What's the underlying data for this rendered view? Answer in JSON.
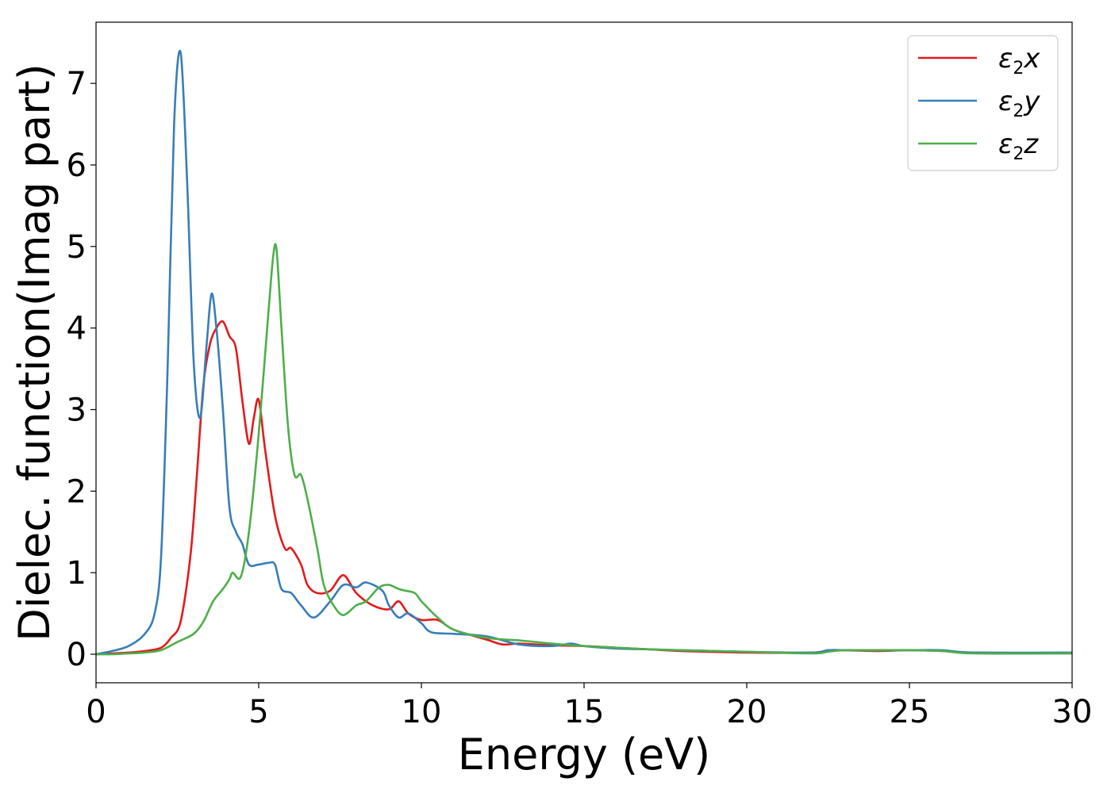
{
  "chart_data": {
    "type": "line",
    "xlabel": "Energy (eV)",
    "ylabel": "Dielec. function(Imag part)",
    "xlim": [
      0,
      30
    ],
    "ylim": [
      -0.35,
      7.75
    ],
    "xticks": [
      0,
      5,
      10,
      15,
      20,
      25,
      30
    ],
    "yticks": [
      0,
      1,
      2,
      3,
      4,
      5,
      6,
      7
    ],
    "grid": false,
    "legend_position": "top-right",
    "series": [
      {
        "name": "ε2x",
        "symbol": "ε",
        "sub": "2",
        "axis": "x",
        "color": "#e41a1c",
        "x": [
          0,
          0.5,
          1.0,
          1.5,
          2.0,
          2.3,
          2.6,
          2.9,
          3.1,
          3.3,
          3.5,
          3.7,
          3.9,
          4.1,
          4.3,
          4.5,
          4.7,
          4.85,
          5.0,
          5.2,
          5.5,
          5.8,
          6.0,
          6.3,
          6.5,
          6.8,
          7.2,
          7.6,
          8.0,
          8.5,
          9.0,
          9.3,
          9.6,
          10.0,
          10.5,
          11.0,
          12.0,
          12.5,
          13.0,
          14.0,
          15.0,
          16.0,
          17.0,
          18.0,
          20.0,
          22.0,
          22.5,
          23.0,
          24.0,
          25.0,
          26.0,
          27.0,
          30.0
        ],
        "y": [
          0,
          0.01,
          0.02,
          0.04,
          0.08,
          0.2,
          0.4,
          1.2,
          2.2,
          3.3,
          3.8,
          4.0,
          4.08,
          3.9,
          3.75,
          3.1,
          2.58,
          2.9,
          3.12,
          2.5,
          1.7,
          1.3,
          1.3,
          1.1,
          0.85,
          0.75,
          0.78,
          0.97,
          0.75,
          0.6,
          0.55,
          0.65,
          0.5,
          0.42,
          0.42,
          0.3,
          0.18,
          0.12,
          0.13,
          0.11,
          0.1,
          0.08,
          0.06,
          0.04,
          0.02,
          0.02,
          0.05,
          0.05,
          0.04,
          0.05,
          0.04,
          0.02,
          0.01
        ]
      },
      {
        "name": "ε2y",
        "symbol": "ε",
        "sub": "2",
        "axis": "y",
        "color": "#377eb8",
        "x": [
          0,
          0.5,
          1.0,
          1.5,
          1.8,
          2.0,
          2.2,
          2.4,
          2.6,
          2.8,
          3.0,
          3.2,
          3.4,
          3.55,
          3.7,
          3.9,
          4.1,
          4.3,
          4.5,
          4.7,
          5.0,
          5.3,
          5.5,
          5.7,
          6.0,
          6.3,
          6.7,
          7.2,
          7.6,
          8.0,
          8.3,
          8.8,
          9.0,
          9.3,
          9.6,
          10.0,
          10.3,
          11.0,
          12.0,
          13.0,
          14.0,
          14.6,
          15.0,
          16.0,
          17.0,
          18.0,
          20.0,
          22.0,
          22.5,
          23.0,
          24.0,
          25.0,
          26.0,
          27.0,
          30.0
        ],
        "y": [
          0,
          0.04,
          0.1,
          0.25,
          0.5,
          1.2,
          3.5,
          6.5,
          7.38,
          5.8,
          3.6,
          2.9,
          3.8,
          4.42,
          4.0,
          3.0,
          1.8,
          1.5,
          1.35,
          1.1,
          1.1,
          1.12,
          1.1,
          0.8,
          0.75,
          0.6,
          0.45,
          0.65,
          0.85,
          0.82,
          0.88,
          0.78,
          0.6,
          0.45,
          0.5,
          0.38,
          0.27,
          0.25,
          0.22,
          0.12,
          0.1,
          0.13,
          0.1,
          0.07,
          0.06,
          0.05,
          0.03,
          0.02,
          0.05,
          0.05,
          0.05,
          0.05,
          0.05,
          0.02,
          0.02
        ]
      },
      {
        "name": "ε2z",
        "symbol": "ε",
        "sub": "2",
        "axis": "z",
        "color": "#4daf4a",
        "x": [
          0,
          0.5,
          1.0,
          1.5,
          2.0,
          2.5,
          3.0,
          3.3,
          3.6,
          3.9,
          4.1,
          4.2,
          4.45,
          4.7,
          5.0,
          5.3,
          5.45,
          5.55,
          5.7,
          5.9,
          6.1,
          6.3,
          6.5,
          6.8,
          7.0,
          7.3,
          7.6,
          8.0,
          8.3,
          8.7,
          9.0,
          9.3,
          9.5,
          9.8,
          10.0,
          10.5,
          11.0,
          12.0,
          13.0,
          14.0,
          15.0,
          16.0,
          17.0,
          18.0,
          20.0,
          22.0,
          22.5,
          23.0,
          24.0,
          25.0,
          26.0,
          27.0,
          30.0
        ],
        "y": [
          0,
          0.0,
          0.01,
          0.02,
          0.05,
          0.15,
          0.25,
          0.4,
          0.65,
          0.8,
          0.92,
          1.0,
          0.95,
          1.5,
          2.7,
          4.2,
          4.9,
          4.95,
          4.0,
          2.8,
          2.2,
          2.2,
          1.9,
          1.3,
          0.85,
          0.6,
          0.48,
          0.6,
          0.65,
          0.82,
          0.85,
          0.8,
          0.78,
          0.75,
          0.65,
          0.45,
          0.3,
          0.2,
          0.17,
          0.13,
          0.1,
          0.08,
          0.06,
          0.05,
          0.03,
          0.01,
          0.03,
          0.05,
          0.05,
          0.05,
          0.04,
          0.01,
          0.01
        ]
      }
    ]
  }
}
